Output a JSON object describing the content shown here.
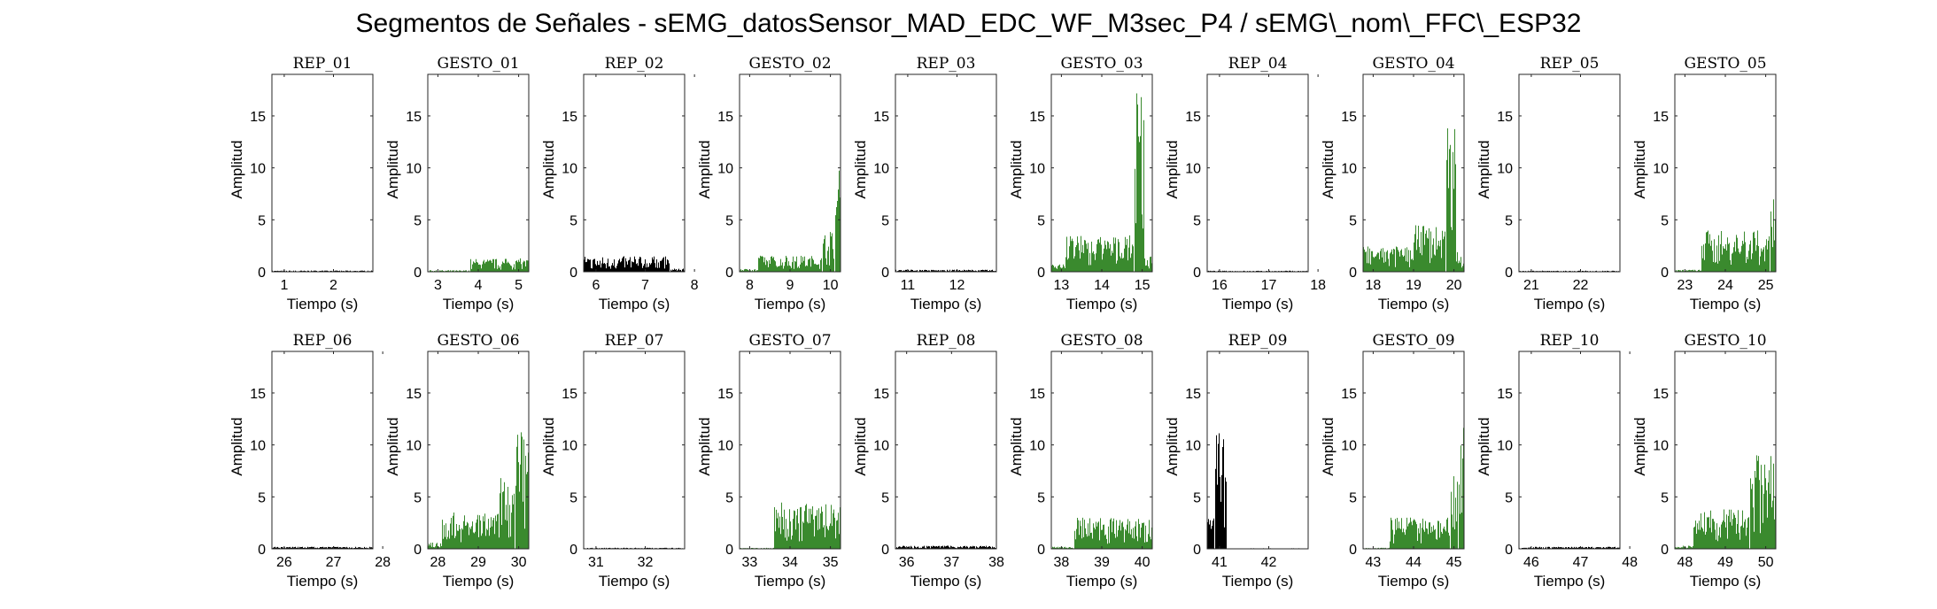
{
  "title": "Segmentos de Señales - sEMG_datosSensor_MAD_EDC_WF_M3sec_P4 / sEMG\\_nom\\_FFC\\_ESP32",
  "colors": {
    "rep": "#000000",
    "gesto": "#3a8a2e",
    "axis": "#262626"
  },
  "chart_data": [
    {
      "type": "area",
      "title": "REP_01",
      "xlabel": "Tiempo (s)",
      "ylabel": "Amplitud",
      "xlim": [
        0.75,
        2.8
      ],
      "ylim": [
        0,
        19
      ],
      "xticks": [
        "1",
        "2"
      ],
      "yticks": [
        "0",
        "5",
        "10",
        "15"
      ],
      "color": "rep",
      "segments": [
        [
          0.75,
          2.8,
          0.12
        ]
      ]
    },
    {
      "type": "area",
      "title": "GESTO_01",
      "xlabel": "Tiempo (s)",
      "ylabel": "Amplitud",
      "xlim": [
        2.75,
        5.25
      ],
      "ylim": [
        0,
        19
      ],
      "xticks": [
        "3",
        "4",
        "5"
      ],
      "yticks": [
        "0",
        "5",
        "10",
        "15"
      ],
      "color": "gesto",
      "segments": [
        [
          2.75,
          3.8,
          0.15
        ],
        [
          3.8,
          5.25,
          1.3
        ]
      ]
    },
    {
      "type": "area",
      "title": "REP_02",
      "xlabel": "Tiempo (s)",
      "ylabel": "Amplitud",
      "xlim": [
        5.75,
        7.8
      ],
      "ylim": [
        0,
        19
      ],
      "xticks": [
        "6",
        "7",
        "8"
      ],
      "yticks": [
        "0",
        "5",
        "10",
        "15"
      ],
      "color": "rep",
      "segments": [
        [
          5.75,
          7.5,
          1.5
        ],
        [
          7.5,
          7.8,
          0.3
        ]
      ]
    },
    {
      "type": "area",
      "title": "GESTO_02",
      "xlabel": "Tiempo (s)",
      "ylabel": "Amplitud",
      "xlim": [
        7.75,
        10.25
      ],
      "ylim": [
        0,
        19
      ],
      "xticks": [
        "8",
        "9",
        "10"
      ],
      "yticks": [
        "0",
        "5",
        "10",
        "15"
      ],
      "color": "gesto",
      "segments": [
        [
          7.75,
          8.2,
          0.3
        ],
        [
          8.2,
          9.8,
          1.6
        ],
        [
          9.8,
          10.1,
          4
        ],
        [
          10.1,
          10.25,
          12
        ]
      ]
    },
    {
      "type": "area",
      "title": "REP_03",
      "xlabel": "Tiempo (s)",
      "ylabel": "Amplitud",
      "xlim": [
        10.75,
        12.8
      ],
      "ylim": [
        0,
        19
      ],
      "xticks": [
        "11",
        "12"
      ],
      "yticks": [
        "0",
        "5",
        "10",
        "15"
      ],
      "color": "rep",
      "segments": [
        [
          10.75,
          12.8,
          0.2
        ]
      ]
    },
    {
      "type": "area",
      "title": "GESTO_03",
      "xlabel": "Tiempo (s)",
      "ylabel": "Amplitud",
      "xlim": [
        12.75,
        15.25
      ],
      "ylim": [
        0,
        19
      ],
      "xticks": [
        "13",
        "14",
        "15"
      ],
      "yticks": [
        "0",
        "5",
        "10",
        "15"
      ],
      "color": "gesto",
      "segments": [
        [
          12.75,
          13.1,
          0.8
        ],
        [
          13.1,
          14.8,
          3.5
        ],
        [
          14.8,
          15.05,
          19
        ],
        [
          15.05,
          15.25,
          1.5
        ]
      ]
    },
    {
      "type": "area",
      "title": "REP_04",
      "xlabel": "Tiempo (s)",
      "ylabel": "Amplitud",
      "xlim": [
        15.75,
        17.8
      ],
      "ylim": [
        0,
        19
      ],
      "xticks": [
        "16",
        "17",
        "18"
      ],
      "yticks": [
        "0",
        "5",
        "10",
        "15"
      ],
      "color": "rep",
      "segments": [
        [
          15.75,
          17.8,
          0.1
        ]
      ]
    },
    {
      "type": "area",
      "title": "GESTO_04",
      "xlabel": "Tiempo (s)",
      "ylabel": "Amplitud",
      "xlim": [
        17.75,
        20.25
      ],
      "ylim": [
        0,
        19
      ],
      "xticks": [
        "18",
        "19",
        "20"
      ],
      "yticks": [
        "0",
        "5",
        "10",
        "15"
      ],
      "color": "gesto",
      "segments": [
        [
          17.75,
          19.0,
          2.5
        ],
        [
          19.0,
          19.8,
          4.5
        ],
        [
          19.8,
          20.05,
          15
        ],
        [
          20.05,
          20.25,
          2
        ]
      ]
    },
    {
      "type": "area",
      "title": "REP_05",
      "xlabel": "Tiempo (s)",
      "ylabel": "Amplitud",
      "xlim": [
        20.75,
        22.8
      ],
      "ylim": [
        0,
        19
      ],
      "xticks": [
        "21",
        "22"
      ],
      "yticks": [
        "0",
        "5",
        "10",
        "15"
      ],
      "color": "rep",
      "segments": [
        [
          20.75,
          22.8,
          0.1
        ]
      ]
    },
    {
      "type": "area",
      "title": "GESTO_05",
      "xlabel": "Tiempo (s)",
      "ylabel": "Amplitud",
      "xlim": [
        22.75,
        25.25
      ],
      "ylim": [
        0,
        19
      ],
      "xticks": [
        "23",
        "24",
        "25"
      ],
      "yticks": [
        "0",
        "5",
        "10",
        "15"
      ],
      "color": "gesto",
      "segments": [
        [
          22.75,
          23.4,
          0.2
        ],
        [
          23.4,
          25.1,
          4
        ],
        [
          25.1,
          25.25,
          7
        ]
      ]
    },
    {
      "type": "area",
      "title": "REP_06",
      "xlabel": "Tiempo (s)",
      "ylabel": "Amplitud",
      "xlim": [
        25.75,
        27.8
      ],
      "ylim": [
        0,
        19
      ],
      "xticks": [
        "26",
        "27",
        "28"
      ],
      "yticks": [
        "0",
        "5",
        "10",
        "15"
      ],
      "color": "rep",
      "segments": [
        [
          25.75,
          27.8,
          0.2
        ]
      ]
    },
    {
      "type": "area",
      "title": "GESTO_06",
      "xlabel": "Tiempo (s)",
      "ylabel": "Amplitud",
      "xlim": [
        27.75,
        30.25
      ],
      "ylim": [
        0,
        19
      ],
      "xticks": [
        "28",
        "29",
        "30"
      ],
      "yticks": [
        "0",
        "5",
        "10",
        "15"
      ],
      "color": "gesto",
      "segments": [
        [
          27.75,
          28.1,
          0.6
        ],
        [
          28.1,
          29.5,
          3.5
        ],
        [
          29.5,
          29.9,
          7
        ],
        [
          29.9,
          30.25,
          11.5
        ]
      ]
    },
    {
      "type": "area",
      "title": "REP_07",
      "xlabel": "Tiempo (s)",
      "ylabel": "Amplitud",
      "xlim": [
        30.75,
        32.8
      ],
      "ylim": [
        0,
        19
      ],
      "xticks": [
        "31",
        "32"
      ],
      "yticks": [
        "0",
        "5",
        "10",
        "15"
      ],
      "color": "rep",
      "segments": [
        [
          30.75,
          32.8,
          0.1
        ]
      ]
    },
    {
      "type": "area",
      "title": "GESTO_07",
      "xlabel": "Tiempo (s)",
      "ylabel": "Amplitud",
      "xlim": [
        32.75,
        35.25
      ],
      "ylim": [
        0,
        19
      ],
      "xticks": [
        "33",
        "34",
        "35"
      ],
      "yticks": [
        "0",
        "5",
        "10",
        "15"
      ],
      "color": "gesto",
      "segments": [
        [
          32.75,
          33.6,
          0.1
        ],
        [
          33.6,
          35.25,
          4.5
        ]
      ]
    },
    {
      "type": "area",
      "title": "REP_08",
      "xlabel": "Tiempo (s)",
      "ylabel": "Amplitud",
      "xlim": [
        35.75,
        38.0
      ],
      "ylim": [
        0,
        19
      ],
      "xticks": [
        "36",
        "37",
        "38"
      ],
      "yticks": [
        "0",
        "5",
        "10",
        "15"
      ],
      "color": "rep",
      "segments": [
        [
          35.75,
          38.0,
          0.3
        ]
      ]
    },
    {
      "type": "area",
      "title": "GESTO_08",
      "xlabel": "Tiempo (s)",
      "ylabel": "Amplitud",
      "xlim": [
        37.75,
        40.25
      ],
      "ylim": [
        0,
        19
      ],
      "xticks": [
        "38",
        "39",
        "40"
      ],
      "yticks": [
        "0",
        "5",
        "10",
        "15"
      ],
      "color": "gesto",
      "segments": [
        [
          37.75,
          38.3,
          0.2
        ],
        [
          38.3,
          40.25,
          3
        ]
      ]
    },
    {
      "type": "area",
      "title": "REP_09",
      "xlabel": "Tiempo (s)",
      "ylabel": "Amplitud",
      "xlim": [
        40.75,
        42.8
      ],
      "ylim": [
        0,
        19
      ],
      "xticks": [
        "41",
        "42"
      ],
      "yticks": [
        "0",
        "5",
        "10",
        "15"
      ],
      "color": "rep",
      "segments": [
        [
          40.75,
          40.9,
          3
        ],
        [
          40.9,
          41.15,
          11.5
        ],
        [
          41.15,
          42.8,
          0.05
        ]
      ]
    },
    {
      "type": "area",
      "title": "GESTO_09",
      "xlabel": "Tiempo (s)",
      "ylabel": "Amplitud",
      "xlim": [
        42.75,
        45.25
      ],
      "ylim": [
        0,
        19
      ],
      "xticks": [
        "43",
        "44",
        "45"
      ],
      "yticks": [
        "0",
        "5",
        "10",
        "15"
      ],
      "color": "gesto",
      "segments": [
        [
          42.75,
          43.4,
          0.1
        ],
        [
          43.4,
          44.9,
          3
        ],
        [
          44.9,
          45.1,
          7
        ],
        [
          45.1,
          45.25,
          13
        ]
      ]
    },
    {
      "type": "area",
      "title": "REP_10",
      "xlabel": "Tiempo (s)",
      "ylabel": "Amplitud",
      "xlim": [
        45.75,
        47.8
      ],
      "ylim": [
        0,
        19
      ],
      "xticks": [
        "46",
        "47",
        "48"
      ],
      "yticks": [
        "0",
        "5",
        "10",
        "15"
      ],
      "color": "rep",
      "segments": [
        [
          45.75,
          47.8,
          0.2
        ]
      ]
    },
    {
      "type": "area",
      "title": "GESTO_10",
      "xlabel": "Tiempo (s)",
      "ylabel": "Amplitud",
      "xlim": [
        47.75,
        50.25
      ],
      "ylim": [
        0,
        19
      ],
      "xticks": [
        "48",
        "49",
        "50"
      ],
      "yticks": [
        "0",
        "5",
        "10",
        "15"
      ],
      "color": "gesto",
      "segments": [
        [
          47.75,
          48.2,
          0.3
        ],
        [
          48.2,
          49.6,
          3.8
        ],
        [
          49.6,
          50.25,
          9
        ]
      ]
    }
  ]
}
